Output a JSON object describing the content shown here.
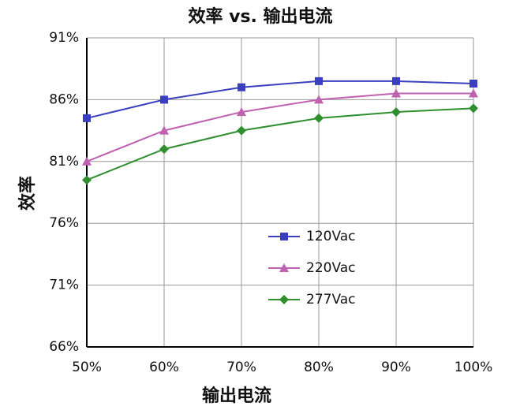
{
  "chart_data": {
    "type": "line",
    "title": "效率 vs. 输出电流",
    "x_label": "输出电流",
    "y_label": "效率",
    "x": [
      50,
      60,
      70,
      80,
      90,
      100
    ],
    "xlim": [
      50,
      100
    ],
    "xticks": [
      {
        "value": 50,
        "label": "50%"
      },
      {
        "value": 60,
        "label": "60%"
      },
      {
        "value": 70,
        "label": "70%"
      },
      {
        "value": 80,
        "label": "80%"
      },
      {
        "value": 90,
        "label": "90%"
      },
      {
        "value": 100,
        "label": "100%"
      }
    ],
    "ylim": [
      66,
      91
    ],
    "yticks": [
      {
        "value": 66,
        "label": "66%"
      },
      {
        "value": 71,
        "label": "71%"
      },
      {
        "value": 76,
        "label": "76%"
      },
      {
        "value": 81,
        "label": "81%"
      },
      {
        "value": 86,
        "label": "86%"
      },
      {
        "value": 91,
        "label": "91%"
      }
    ],
    "grid": true,
    "legend": "right",
    "series": [
      {
        "name": "120Vac",
        "color": "#3a3fbf",
        "marker": "square",
        "values": [
          84.5,
          86,
          87,
          87.5,
          87.5,
          87.3
        ]
      },
      {
        "name": "220Vac",
        "color": "#c060b0",
        "marker": "triangle",
        "values": [
          81,
          83.5,
          85,
          86,
          86.5,
          86.5
        ]
      },
      {
        "name": "277Vac",
        "color": "#2f8f2f",
        "marker": "diamond",
        "values": [
          79.5,
          82,
          83.5,
          84.5,
          85,
          85.3
        ]
      }
    ]
  }
}
